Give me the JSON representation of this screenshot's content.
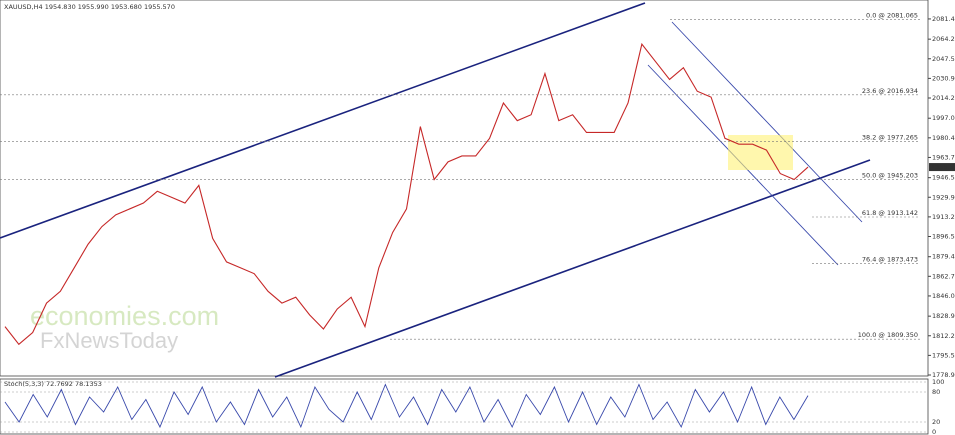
{
  "chart_data": {
    "type": "line",
    "title": "XAUUSD,H4  1954.830 1955.990 1953.680 1955.570",
    "last_price": {
      "value": 1955.57,
      "label": "1955.57"
    },
    "series": [
      {
        "color": "#c62828",
        "values": [
          1820,
          1805,
          1815,
          1840,
          1850,
          1870,
          1890,
          1905,
          1915,
          1920,
          1925,
          1935,
          1930,
          1925,
          1940,
          1895,
          1875,
          1870,
          1865,
          1850,
          1840,
          1845,
          1830,
          1818,
          1835,
          1845,
          1820,
          1870,
          1900,
          1920,
          1990,
          1945,
          1960,
          1965,
          1965,
          1980,
          2010,
          1995,
          2000,
          2035,
          1995,
          2000,
          1985,
          1985,
          1985,
          2010,
          2060,
          2045,
          2030,
          2040,
          2020,
          2015,
          1980,
          1975,
          1975,
          1970,
          1950,
          1945,
          1955.57
        ]
      }
    ],
    "ylim": [
      1778.915,
      2097.5
    ],
    "yticks": [
      2081.415,
      2064.24,
      2047.575,
      2030.91,
      2014.245,
      1997.075,
      1980.41,
      1963.745,
      1946.575,
      1929.91,
      1913.245,
      {
        "value": 1896.58,
        "label": "1896.580"
      },
      1879.41,
      1862.745,
      {
        "value": 1846.08,
        "label": "1846.080"
      },
      {
        "value": 1828.91,
        "label": "1828.910"
      },
      1812.245,
      {
        "value": 1795.58,
        "label": "1795.580"
      },
      1778.915
    ],
    "fib_levels": [
      {
        "label": "0.0 @ 2081.065",
        "value": 2081.065
      },
      {
        "label": "23.6 @ 2016.934",
        "value": 2016.934
      },
      {
        "label": "38.2 @ 1977.265",
        "value": 1977.265
      },
      {
        "label": "50.0 @ 1945.203",
        "value": 1945.203
      },
      {
        "label": "61.8 @ 1913.142",
        "value": 1913.142
      },
      {
        "label": "76.4 @ 1873.473",
        "value": 1873.473
      },
      {
        "label": "100.0 @ 1809.350",
        "value": 1809.35
      }
    ],
    "watermark": [
      "economies.com",
      "FxNewsToday"
    ],
    "oscillator": {
      "title": "Stoch(5,3,3) 72.7692 78.1353",
      "ylim": [
        0,
        100
      ],
      "yticks": [
        100,
        80,
        20,
        0
      ],
      "values": [
        60,
        20,
        75,
        30,
        85,
        15,
        70,
        40,
        90,
        25,
        65,
        10,
        80,
        35,
        90,
        20,
        60,
        15,
        85,
        30,
        70,
        10,
        90,
        45,
        20,
        80,
        25,
        95,
        30,
        70,
        15,
        85,
        40,
        90,
        20,
        65,
        10,
        75,
        35,
        90,
        20,
        80,
        15,
        70,
        30,
        95,
        25,
        60,
        10,
        85,
        40,
        80,
        20,
        90,
        15,
        70,
        25,
        72.77
      ]
    }
  }
}
